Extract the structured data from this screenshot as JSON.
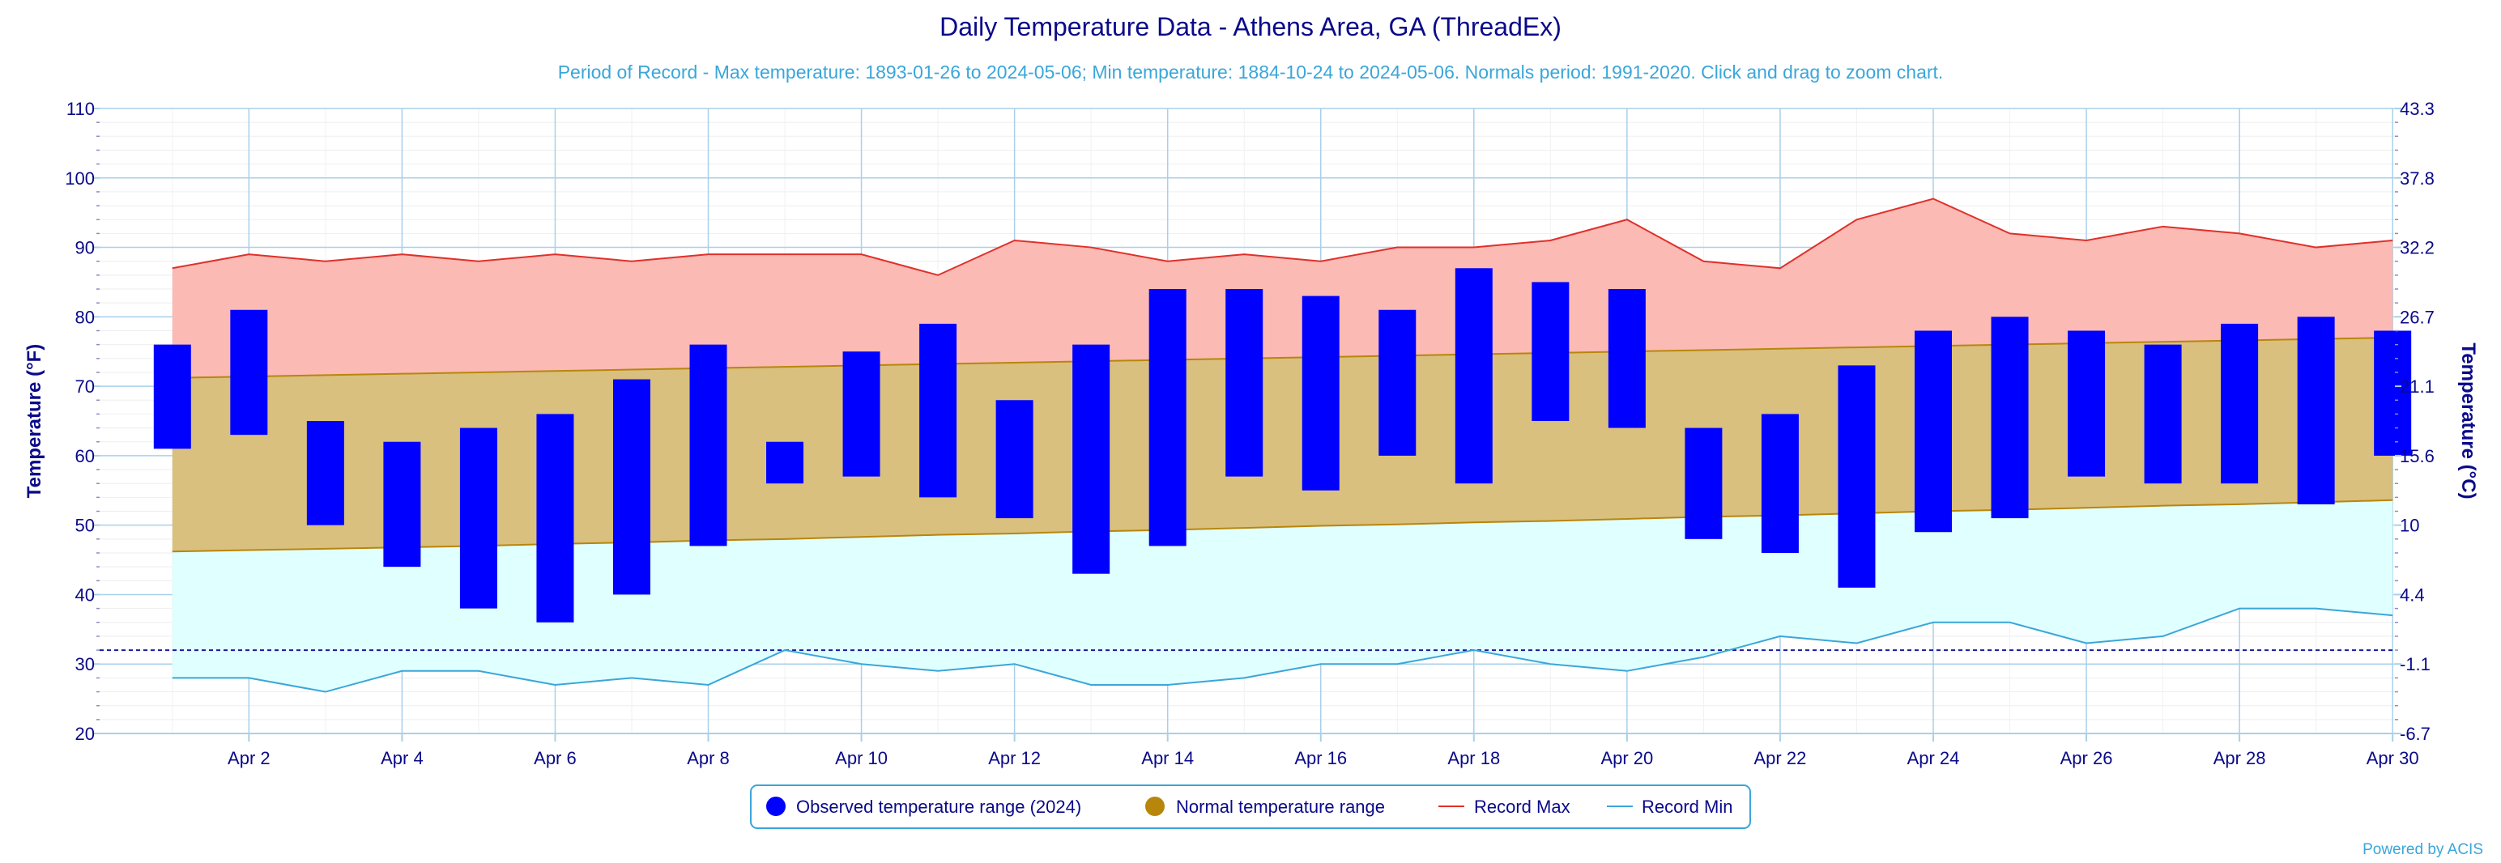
{
  "chart_data": {
    "type": "bar",
    "title": "Daily Temperature Data - Athens Area, GA (ThreadEx)",
    "subtitle": "Period of Record - Max temperature: 1893-01-26 to 2024-05-06; Min temperature: 1884-10-24 to 2024-05-06. Normals period: 1991-2020. Click and drag to zoom chart.",
    "ylabel": "Temperature (°F)",
    "y2label": "Temperature (°C)",
    "ylim": [
      20,
      110
    ],
    "y_ticks": [
      20,
      30,
      40,
      50,
      60,
      70,
      80,
      90,
      100,
      110
    ],
    "y2_ticks": [
      "-6.7",
      "-1.1",
      "4.4",
      "10",
      "15.6",
      "21.1",
      "26.7",
      "32.2",
      "37.8",
      "43.3"
    ],
    "x_tick_labels": [
      "Apr 2",
      "Apr 4",
      "Apr 6",
      "Apr 8",
      "Apr 10",
      "Apr 12",
      "Apr 14",
      "Apr 16",
      "Apr 18",
      "Apr 20",
      "Apr 22",
      "Apr 24",
      "Apr 26",
      "Apr 28",
      "Apr 30"
    ],
    "x_tick_days": [
      2,
      4,
      6,
      8,
      10,
      12,
      14,
      16,
      18,
      20,
      22,
      24,
      26,
      28,
      30
    ],
    "days": [
      1,
      2,
      3,
      4,
      5,
      6,
      7,
      8,
      9,
      10,
      11,
      12,
      13,
      14,
      15,
      16,
      17,
      18,
      19,
      20,
      21,
      22,
      23,
      24,
      25,
      26,
      27,
      28,
      29,
      30
    ],
    "freezing_line": 32,
    "grid": true,
    "legend_position": "bottom-center",
    "series": [
      {
        "name": "Observed temperature range (2024)",
        "low": [
          61,
          63,
          50,
          44,
          38,
          36,
          40,
          47,
          56,
          57,
          54,
          51,
          43,
          47,
          57,
          55,
          60,
          56,
          65,
          64,
          48,
          46,
          41,
          49,
          51,
          57,
          56,
          56,
          53,
          60
        ],
        "high": [
          76,
          81,
          65,
          62,
          64,
          66,
          71,
          76,
          62,
          75,
          79,
          68,
          76,
          84,
          84,
          83,
          81,
          87,
          85,
          84,
          64,
          66,
          73,
          78,
          80,
          78,
          76,
          79,
          80,
          78
        ]
      },
      {
        "name": "Normal temperature range",
        "low": [
          46.2,
          46.4,
          46.6,
          46.8,
          47.0,
          47.3,
          47.5,
          47.8,
          48.0,
          48.3,
          48.6,
          48.8,
          49.1,
          49.3,
          49.6,
          49.9,
          50.1,
          50.4,
          50.6,
          50.9,
          51.2,
          51.4,
          51.7,
          52.0,
          52.2,
          52.5,
          52.8,
          53.0,
          53.3,
          53.6
        ],
        "high": [
          71.2,
          71.4,
          71.6,
          71.8,
          72.0,
          72.2,
          72.4,
          72.6,
          72.8,
          73.0,
          73.2,
          73.4,
          73.6,
          73.8,
          74.0,
          74.2,
          74.4,
          74.6,
          74.8,
          75.0,
          75.2,
          75.4,
          75.6,
          75.8,
          76.0,
          76.2,
          76.4,
          76.6,
          76.8,
          77.0
        ]
      },
      {
        "name": "Record Max",
        "values": [
          87,
          89,
          88,
          89,
          88,
          89,
          88,
          89,
          89,
          89,
          86,
          91,
          90,
          88,
          89,
          88,
          90,
          90,
          91,
          94,
          88,
          87,
          94,
          97,
          92,
          91,
          93,
          92,
          90,
          91
        ]
      },
      {
        "name": "Record Min",
        "values": [
          28,
          28,
          26,
          29,
          29,
          27,
          28,
          27,
          32,
          30,
          29,
          30,
          27,
          27,
          28,
          30,
          30,
          32,
          30,
          29,
          31,
          34,
          33,
          36,
          36,
          33,
          34,
          38,
          38,
          37
        ]
      }
    ],
    "colors": {
      "observed": "#0000ff",
      "normal_fill": "#d9c07f",
      "normal_line": "#b8860b",
      "normal_marker": "#b8860b",
      "record_max_fill": "#fbbab4",
      "record_max_line": "#e0302a",
      "record_min_fill": "#e0ffff",
      "record_min_line": "#3aa6d9",
      "grid": "#a8d0ea",
      "freezing": "#1a1aa0"
    }
  },
  "footer": {
    "credit": "Powered by ACIS"
  }
}
